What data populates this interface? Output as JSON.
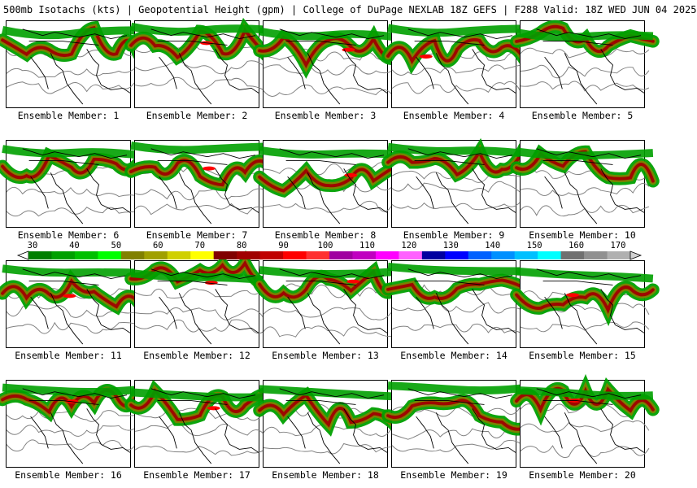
{
  "header": {
    "title": "500mb Isotachs (kts) | Geopotential Height (gpm) | College of DuPage NEXLAB  18Z GEFS | F288 Valid: 18Z WED JUN 04 2025"
  },
  "colorbar": {
    "ticks": [
      "30",
      "40",
      "50",
      "60",
      "70",
      "80",
      "90",
      "100",
      "110",
      "120",
      "130",
      "140",
      "150",
      "160",
      "170"
    ],
    "colors": [
      "#007f00",
      "#00a000",
      "#00c000",
      "#00ff00",
      "#808000",
      "#a0a000",
      "#d0d000",
      "#ffff00",
      "#800000",
      "#a00000",
      "#c00000",
      "#ff0000",
      "#ff3030",
      "#a000a0",
      "#c000c0",
      "#ff00ff",
      "#ff60ff",
      "#0000a0",
      "#0000ff",
      "#0060ff",
      "#0090ff",
      "#00c0ff",
      "#00ffff",
      "#707070",
      "#909090",
      "#b0b0b0"
    ]
  },
  "colors": {
    "jet_low": "#00a000",
    "jet_mid": "#808000",
    "jet_high": "#a00000",
    "jet_core": "#ff0000",
    "height_contour": "#808080",
    "coastline": "#000000"
  },
  "panels": [
    {
      "label": "Ensemble Member: 1"
    },
    {
      "label": "Ensemble Member: 2"
    },
    {
      "label": "Ensemble Member: 3"
    },
    {
      "label": "Ensemble Member: 4"
    },
    {
      "label": "Ensemble Member: 5"
    },
    {
      "label": "Ensemble Member: 6"
    },
    {
      "label": "Ensemble Member: 7"
    },
    {
      "label": "Ensemble Member: 8"
    },
    {
      "label": "Ensemble Member: 9"
    },
    {
      "label": "Ensemble Member: 10"
    },
    {
      "label": "Ensemble Member: 11"
    },
    {
      "label": "Ensemble Member: 12"
    },
    {
      "label": "Ensemble Member: 13"
    },
    {
      "label": "Ensemble Member: 14"
    },
    {
      "label": "Ensemble Member: 15"
    },
    {
      "label": "Ensemble Member: 16"
    },
    {
      "label": "Ensemble Member: 17"
    },
    {
      "label": "Ensemble Member: 18"
    },
    {
      "label": "Ensemble Member: 19"
    },
    {
      "label": "Ensemble Member: 20"
    }
  ]
}
